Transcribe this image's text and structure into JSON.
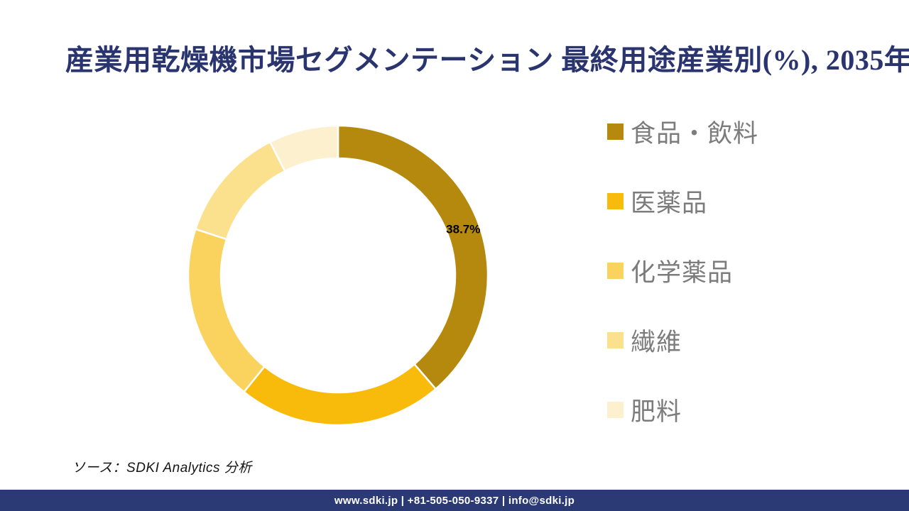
{
  "title": "産業用乾燥機市場セグメンテーション 最終用途産業別(%), 2035年",
  "title_color": "#2A346E",
  "chart_data": {
    "type": "pie",
    "subtype": "donut",
    "title": "産業用乾燥機市場セグメンテーション 最終用途産業別(%), 2035年",
    "unit": "%",
    "start_angle_deg": 0,
    "direction": "clockwise",
    "inner_radius_ratio": 0.782,
    "legend_position": "right",
    "segments": [
      {
        "label": "食品・飲料",
        "value": 38.7,
        "color": "#B5890D",
        "data_label": "38.7%"
      },
      {
        "label": "医薬品",
        "value": 22.1,
        "color": "#F8BA0B"
      },
      {
        "label": "化学薬品",
        "value": 19.2,
        "color": "#FAD35F"
      },
      {
        "label": "繊維",
        "value": 12.5,
        "color": "#FBE08E"
      },
      {
        "label": "肥料",
        "value": 7.5,
        "color": "#FDF0CE"
      }
    ]
  },
  "source": {
    "text": "ソース：SDKI Analytics 分析"
  },
  "footer": {
    "text": "www.sdki.jp | +81-505-050-9337 | info@sdki.jp",
    "background": "#2B3A74"
  }
}
